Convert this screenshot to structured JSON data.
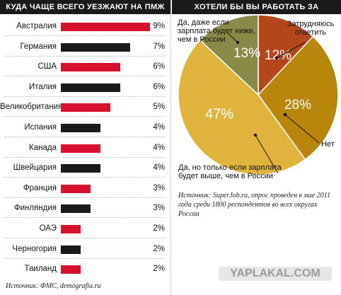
{
  "chart_data": [
    {
      "type": "bar",
      "orientation": "horizontal",
      "title": "КУДА ЧАЩЕ ВСЕГО УЕЗЖАЮТ НА ПМЖ РОССИЯНЕ",
      "categories": [
        "Австралия",
        "Германия",
        "США",
        "Италия",
        "Великобритания",
        "Испания",
        "Канада",
        "Швейцария",
        "Франция",
        "Финляндия",
        "ОАЭ",
        "Черногория",
        "Таиланд"
      ],
      "values": [
        9,
        7,
        6,
        6,
        5,
        4,
        4,
        4,
        3,
        3,
        2,
        2,
        2
      ],
      "value_labels": [
        "9%",
        "7%",
        "6%",
        "6%",
        "5%",
        "4%",
        "4%",
        "4%",
        "3%",
        "3%",
        "2%",
        "2%",
        "2%"
      ],
      "bar_colors": [
        "#d7112b",
        "#1a1a1a",
        "#d7112b",
        "#1a1a1a",
        "#d7112b",
        "#1a1a1a",
        "#d7112b",
        "#1a1a1a",
        "#d7112b",
        "#1a1a1a",
        "#d7112b",
        "#1a1a1a",
        "#d7112b"
      ],
      "xlim": [
        0,
        9
      ],
      "grid": false,
      "source": "Источник: ФМС, demografia.ru"
    },
    {
      "type": "pie",
      "title": "ХОТЕЛИ БЫ ВЫ РАБОТАТЬ ЗА ГРАНИЦЕЙ?",
      "slices": [
        {
          "label": "Затрудняюсь ответить",
          "value": 12,
          "value_label": "12%",
          "color": "#b5451b"
        },
        {
          "label": "Нет",
          "value": 28,
          "value_label": "28%",
          "color": "#b8860b"
        },
        {
          "label": "Да, но только если зарплата будет выше, чем в России",
          "value": 47,
          "value_label": "47%",
          "color": "#e0b43c"
        },
        {
          "label": "Да, даже если зарплата будет ниже, чем в России",
          "value": 13,
          "value_label": "13%",
          "color": "#8a8a48"
        }
      ],
      "source": "Источник: SuperJob.ru, опрос проведен в мае 2011 года среди 1800 респондентов во всех округах России"
    }
  ],
  "watermark": "YAPLAKAL.COM"
}
